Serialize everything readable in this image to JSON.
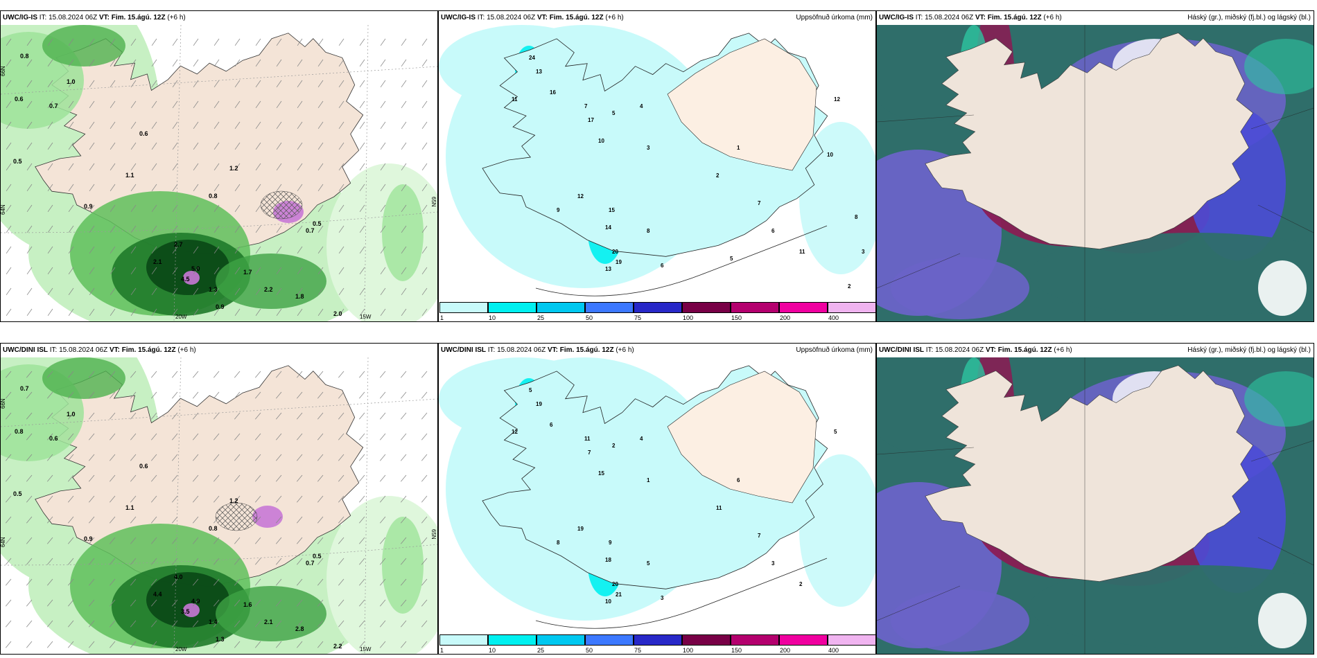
{
  "panels": [
    {
      "model": "UWC/IG-IS",
      "it_label": "IT:",
      "it": "15.08.2024 06Z",
      "vt_label": "VT:",
      "vt": "Fim. 15.ágú. 12Z",
      "lead": "(+6 h)",
      "title": ""
    },
    {
      "model": "UWC/IG-IS",
      "it_label": "IT:",
      "it": "15.08.2024 06Z",
      "vt_label": "VT:",
      "vt": "Fim. 15.ágú. 12Z",
      "lead": "(+6 h)",
      "title": "Uppsöfnuð úrkoma (mm)"
    },
    {
      "model": "UWC/IG-IS",
      "it_label": "IT:",
      "it": "15.08.2024 06Z",
      "vt_label": "VT:",
      "vt": "Fim. 15.ágú. 12Z",
      "lead": "(+6 h)",
      "title": "Háský (gr.), miðský (fj.bl.) og lágský (bl.)"
    },
    {
      "model": "UWC/DINI ISL",
      "it_label": "IT:",
      "it": "15.08.2024 06Z",
      "vt_label": "VT:",
      "vt": "Fim. 15.ágú. 12Z",
      "lead": "(+6 h)",
      "title": ""
    },
    {
      "model": "UWC/DINI ISL",
      "it_label": "IT:",
      "it": "15.08.2024 06Z",
      "vt_label": "VT:",
      "vt": "Fim. 15.ágú. 12Z",
      "lead": "(+6 h)",
      "title": "Uppsöfnuð úrkoma (mm)"
    },
    {
      "model": "UWC/DINI ISL",
      "it_label": "IT:",
      "it": "15.08.2024 06Z",
      "vt_label": "VT:",
      "vt": "Fim. 15.ágú. 12Z",
      "lead": "(+6 h)",
      "title": "Háský (gr.), miðský (fj.bl.) og lágský (bl.)"
    }
  ],
  "grid_labels": {
    "lon_20w": "20W",
    "lon_15w": "15W",
    "lat_66n": "66N",
    "lat_64n": "64N",
    "lat_65n": "65N"
  },
  "colorbar": {
    "labels": [
      "1",
      "10",
      "25",
      "50",
      "75",
      "100",
      "150",
      "200",
      "400"
    ],
    "colors": [
      "#c8fafa",
      "#00f0f0",
      "#00c8f0",
      "#3c78ff",
      "#2828c8",
      "#780046",
      "#b4006e",
      "#f000a0",
      "#f0b4f0"
    ]
  },
  "precip_values_top": [
    {
      "v": "24"
    },
    {
      "v": "16"
    },
    {
      "v": "13"
    },
    {
      "v": "11"
    },
    {
      "v": "7"
    },
    {
      "v": "17"
    },
    {
      "v": "10"
    },
    {
      "v": "12"
    },
    {
      "v": "14"
    },
    {
      "v": "20"
    },
    {
      "v": "19"
    },
    {
      "v": "13"
    },
    {
      "v": "15"
    },
    {
      "v": "9"
    },
    {
      "v": "8"
    },
    {
      "v": "6"
    },
    {
      "v": "5"
    },
    {
      "v": "4"
    },
    {
      "v": "3"
    },
    {
      "v": "2"
    },
    {
      "v": "1"
    },
    {
      "v": "7"
    },
    {
      "v": "6"
    },
    {
      "v": "11"
    },
    {
      "v": "12"
    },
    {
      "v": "10"
    },
    {
      "v": "8"
    },
    {
      "v": "3"
    },
    {
      "v": "2"
    },
    {
      "v": "5"
    }
  ],
  "precip_values_bottom": [
    {
      "v": "5"
    },
    {
      "v": "6"
    },
    {
      "v": "19"
    },
    {
      "v": "12"
    },
    {
      "v": "11"
    },
    {
      "v": "7"
    },
    {
      "v": "15"
    },
    {
      "v": "19"
    },
    {
      "v": "18"
    },
    {
      "v": "20"
    },
    {
      "v": "21"
    },
    {
      "v": "10"
    },
    {
      "v": "9"
    },
    {
      "v": "8"
    },
    {
      "v": "5"
    },
    {
      "v": "3"
    },
    {
      "v": "2"
    },
    {
      "v": "4"
    },
    {
      "v": "1"
    },
    {
      "v": "11"
    },
    {
      "v": "6"
    },
    {
      "v": "7"
    },
    {
      "v": "3"
    },
    {
      "v": "2"
    },
    {
      "v": "5"
    }
  ],
  "wind_values_top": [
    {
      "v": "0.8"
    },
    {
      "v": "0.6"
    },
    {
      "v": "0.7"
    },
    {
      "v": "1.0"
    },
    {
      "v": "0.5"
    },
    {
      "v": "0.9"
    },
    {
      "v": "2.1"
    },
    {
      "v": "5.0"
    },
    {
      "v": "4.5"
    },
    {
      "v": "2.7"
    },
    {
      "v": "1.8"
    },
    {
      "v": "2.2"
    },
    {
      "v": "0.9"
    },
    {
      "v": "1.7"
    },
    {
      "v": "2.0"
    },
    {
      "v": "1.3"
    },
    {
      "v": "0.6"
    },
    {
      "v": "1.1"
    },
    {
      "v": "0.8"
    },
    {
      "v": "0.5"
    },
    {
      "v": "1.2"
    },
    {
      "v": "0.7"
    }
  ],
  "wind_values_bottom": [
    {
      "v": "0.7"
    },
    {
      "v": "0.8"
    },
    {
      "v": "0.6"
    },
    {
      "v": "1.0"
    },
    {
      "v": "0.5"
    },
    {
      "v": "0.9"
    },
    {
      "v": "4.4"
    },
    {
      "v": "4.9"
    },
    {
      "v": "3.5"
    },
    {
      "v": "4.0"
    },
    {
      "v": "2.8"
    },
    {
      "v": "2.1"
    },
    {
      "v": "1.3"
    },
    {
      "v": "1.6"
    },
    {
      "v": "2.2"
    },
    {
      "v": "1.4"
    },
    {
      "v": "0.6"
    },
    {
      "v": "1.1"
    },
    {
      "v": "0.8"
    },
    {
      "v": "0.5"
    },
    {
      "v": "1.2"
    },
    {
      "v": "0.7"
    }
  ]
}
